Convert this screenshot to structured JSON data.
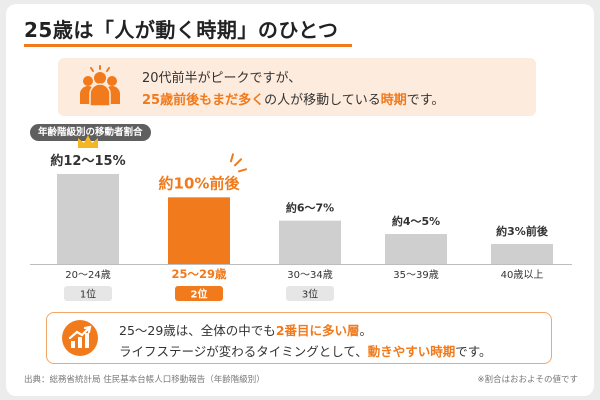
{
  "title": "25歳は「人が動く時期」のひとつ",
  "intro": {
    "line1": "20代前半がピークですが、",
    "line2_em1": "25歳前後もまだ多く",
    "line2_mid": "の人が移動している",
    "line2_em2": "時期",
    "line2_end": "です。"
  },
  "pill_label": "年齢階級別の移動者割合",
  "chart_data": {
    "type": "bar",
    "categories": [
      "20〜24歳",
      "25〜29歳",
      "30〜34歳",
      "35〜39歳",
      "40歳以上"
    ],
    "values": [
      13.5,
      10,
      6.5,
      4.5,
      3
    ],
    "value_labels": [
      "約12〜15%",
      "約10%前後",
      "約6〜7%",
      "約4〜5%",
      "約3%前後"
    ],
    "ranks": [
      "1位",
      "2位",
      "3位",
      "",
      ""
    ],
    "highlight_index": 1,
    "colors": {
      "default": "#cfcfcf",
      "highlight": "#f07a1c",
      "rank_default": "#e6e6e6",
      "rank_highlight": "#f07a1c"
    }
  },
  "bottom": {
    "l1_start": "25〜29歳は、全体の中でも",
    "l1_em": "2番目に多い層",
    "l1_end": "。",
    "l2_start": "ライフステージが変わるタイミングとして、",
    "l2_em": "動きやすい時期",
    "l2_end": "です。"
  },
  "source": "出典：総務省統計局 住民基本台帳人口移動報告（年齢階級別）",
  "note": "※割合はおおよその値です",
  "accent": "#f07a1c"
}
